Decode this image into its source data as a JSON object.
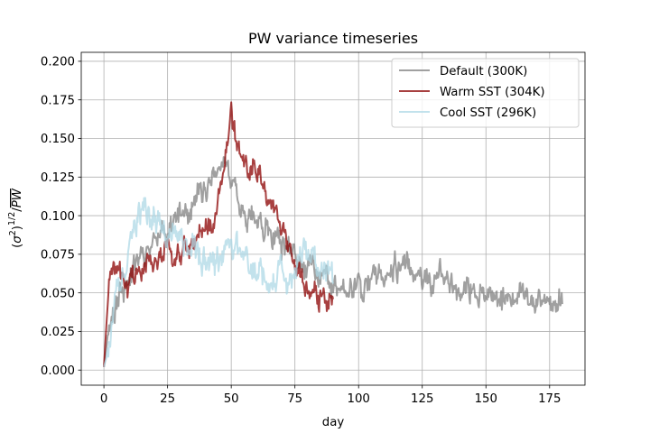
{
  "chart_data": {
    "type": "line",
    "title": "PW variance timeseries",
    "xlabel": "day",
    "ylabel_tex": "(σ²)^{1/2}/PW",
    "xlim": [
      -8.9,
      188.9
    ],
    "ylim": [
      -0.0098,
      0.2058
    ],
    "xticks": [
      0,
      25,
      50,
      75,
      100,
      125,
      150,
      175
    ],
    "yticks": [
      0.0,
      0.025,
      0.05,
      0.075,
      0.1,
      0.125,
      0.15,
      0.175,
      0.2
    ],
    "xtick_labels": [
      "0",
      "25",
      "50",
      "75",
      "100",
      "125",
      "150",
      "175"
    ],
    "ytick_labels": [
      "0.000",
      "0.025",
      "0.050",
      "0.075",
      "0.100",
      "0.125",
      "0.150",
      "0.175",
      "0.200"
    ],
    "grid": true,
    "legend_loc": "upper right",
    "sample_step_days": 0.25,
    "series": [
      {
        "name": "Default (300K)",
        "color": "#808080",
        "alpha": 0.75,
        "x_range": [
          0,
          180
        ],
        "anchors": [
          [
            0,
            0.002
          ],
          [
            1,
            0.015
          ],
          [
            2,
            0.03
          ],
          [
            4,
            0.04
          ],
          [
            6,
            0.05
          ],
          [
            8,
            0.055
          ],
          [
            10,
            0.06
          ],
          [
            12,
            0.07
          ],
          [
            14,
            0.075
          ],
          [
            17,
            0.08
          ],
          [
            20,
            0.085
          ],
          [
            23,
            0.09
          ],
          [
            26,
            0.095
          ],
          [
            29,
            0.098
          ],
          [
            32,
            0.1
          ],
          [
            35,
            0.105
          ],
          [
            38,
            0.115
          ],
          [
            41,
            0.12
          ],
          [
            44,
            0.128
          ],
          [
            47,
            0.132
          ],
          [
            50,
            0.122
          ],
          [
            53,
            0.113
          ],
          [
            56,
            0.105
          ],
          [
            60,
            0.095
          ],
          [
            64,
            0.088
          ],
          [
            68,
            0.082
          ],
          [
            72,
            0.075
          ],
          [
            76,
            0.07
          ],
          [
            80,
            0.066
          ],
          [
            84,
            0.062
          ],
          [
            88,
            0.058
          ],
          [
            92,
            0.052
          ],
          [
            96,
            0.05
          ],
          [
            100,
            0.054
          ],
          [
            104,
            0.058
          ],
          [
            108,
            0.062
          ],
          [
            112,
            0.064
          ],
          [
            116,
            0.066
          ],
          [
            120,
            0.065
          ],
          [
            124,
            0.064
          ],
          [
            128,
            0.062
          ],
          [
            132,
            0.06
          ],
          [
            136,
            0.056
          ],
          [
            140,
            0.052
          ],
          [
            144,
            0.05
          ],
          [
            148,
            0.05
          ],
          [
            152,
            0.048
          ],
          [
            156,
            0.046
          ],
          [
            160,
            0.047
          ],
          [
            164,
            0.046
          ],
          [
            168,
            0.044
          ],
          [
            172,
            0.044
          ],
          [
            176,
            0.046
          ],
          [
            180,
            0.045
          ]
        ],
        "noise": 0.0085,
        "seed": 11
      },
      {
        "name": "Warm SST (304K)",
        "color": "#8b0000",
        "alpha": 0.75,
        "x_range": [
          0,
          90
        ],
        "anchors": [
          [
            0,
            0.002
          ],
          [
            1,
            0.03
          ],
          [
            2,
            0.055
          ],
          [
            3,
            0.065
          ],
          [
            5,
            0.068
          ],
          [
            7,
            0.062
          ],
          [
            9,
            0.058
          ],
          [
            11,
            0.056
          ],
          [
            13,
            0.058
          ],
          [
            15,
            0.062
          ],
          [
            17,
            0.065
          ],
          [
            19,
            0.068
          ],
          [
            21,
            0.072
          ],
          [
            24,
            0.075
          ],
          [
            27,
            0.078
          ],
          [
            30,
            0.08
          ],
          [
            33,
            0.082
          ],
          [
            36,
            0.084
          ],
          [
            39,
            0.088
          ],
          [
            42,
            0.095
          ],
          [
            45,
            0.11
          ],
          [
            47,
            0.125
          ],
          [
            49,
            0.155
          ],
          [
            50,
            0.175
          ],
          [
            51,
            0.16
          ],
          [
            53,
            0.145
          ],
          [
            55,
            0.135
          ],
          [
            57,
            0.13
          ],
          [
            59,
            0.128
          ],
          [
            61,
            0.124
          ],
          [
            63,
            0.122
          ],
          [
            65,
            0.115
          ],
          [
            67,
            0.105
          ],
          [
            69,
            0.095
          ],
          [
            71,
            0.085
          ],
          [
            73,
            0.075
          ],
          [
            75,
            0.068
          ],
          [
            77,
            0.06
          ],
          [
            79,
            0.055
          ],
          [
            81,
            0.05
          ],
          [
            83,
            0.047
          ],
          [
            85,
            0.045
          ],
          [
            87,
            0.045
          ],
          [
            90,
            0.045
          ]
        ],
        "noise": 0.008,
        "seed": 23
      },
      {
        "name": "Cool SST (296K)",
        "color": "#add8e6",
        "alpha": 0.75,
        "x_range": [
          0,
          90
        ],
        "anchors": [
          [
            0,
            0.002
          ],
          [
            1,
            0.008
          ],
          [
            2,
            0.02
          ],
          [
            4,
            0.04
          ],
          [
            6,
            0.05
          ],
          [
            8,
            0.06
          ],
          [
            10,
            0.075
          ],
          [
            12,
            0.09
          ],
          [
            14,
            0.1
          ],
          [
            16,
            0.104
          ],
          [
            18,
            0.1
          ],
          [
            20,
            0.097
          ],
          [
            22,
            0.093
          ],
          [
            24,
            0.09
          ],
          [
            26,
            0.088
          ],
          [
            28,
            0.087
          ],
          [
            30,
            0.086
          ],
          [
            32,
            0.085
          ],
          [
            34,
            0.082
          ],
          [
            36,
            0.078
          ],
          [
            38,
            0.074
          ],
          [
            40,
            0.07
          ],
          [
            42,
            0.068
          ],
          [
            44,
            0.068
          ],
          [
            46,
            0.07
          ],
          [
            48,
            0.074
          ],
          [
            50,
            0.076
          ],
          [
            52,
            0.078
          ],
          [
            54,
            0.074
          ],
          [
            56,
            0.072
          ],
          [
            58,
            0.068
          ],
          [
            60,
            0.064
          ],
          [
            62,
            0.062
          ],
          [
            64,
            0.061
          ],
          [
            66,
            0.062
          ],
          [
            68,
            0.062
          ],
          [
            70,
            0.06
          ],
          [
            72,
            0.06
          ],
          [
            74,
            0.062
          ],
          [
            76,
            0.066
          ],
          [
            78,
            0.07
          ],
          [
            80,
            0.07
          ],
          [
            82,
            0.066
          ],
          [
            84,
            0.062
          ],
          [
            86,
            0.06
          ],
          [
            88,
            0.06
          ],
          [
            90,
            0.06
          ]
        ],
        "noise": 0.0095,
        "seed": 37
      }
    ]
  }
}
